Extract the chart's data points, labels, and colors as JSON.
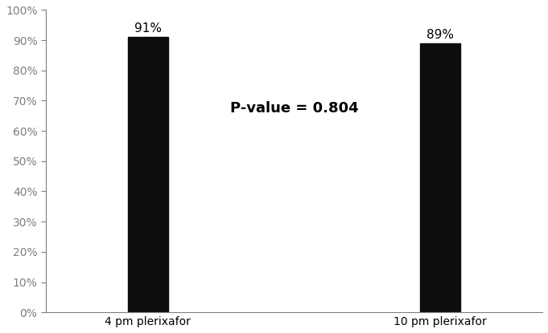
{
  "categories": [
    "4 pm plerixafor",
    "10 pm plerixafor"
  ],
  "values": [
    0.91,
    0.89
  ],
  "bar_labels": [
    "91%",
    "89%"
  ],
  "bar_color": "#0d0d0d",
  "bar_width": 0.28,
  "ylim": [
    0,
    1.0
  ],
  "yticks": [
    0.0,
    0.1,
    0.2,
    0.3,
    0.4,
    0.5,
    0.6,
    0.7,
    0.8,
    0.9,
    1.0
  ],
  "ytick_labels": [
    "0%",
    "10%",
    "20%",
    "30%",
    "40%",
    "50%",
    "60%",
    "70%",
    "80%",
    "90%",
    "100%"
  ],
  "annotation_text": "P-value = 0.804",
  "annotation_fontsize": 13,
  "bar_label_fontsize": 11,
  "tick_label_fontsize": 10,
  "tick_color": "#7f7f7f",
  "spine_color": "#7f7f7f",
  "background_color": "#ffffff"
}
